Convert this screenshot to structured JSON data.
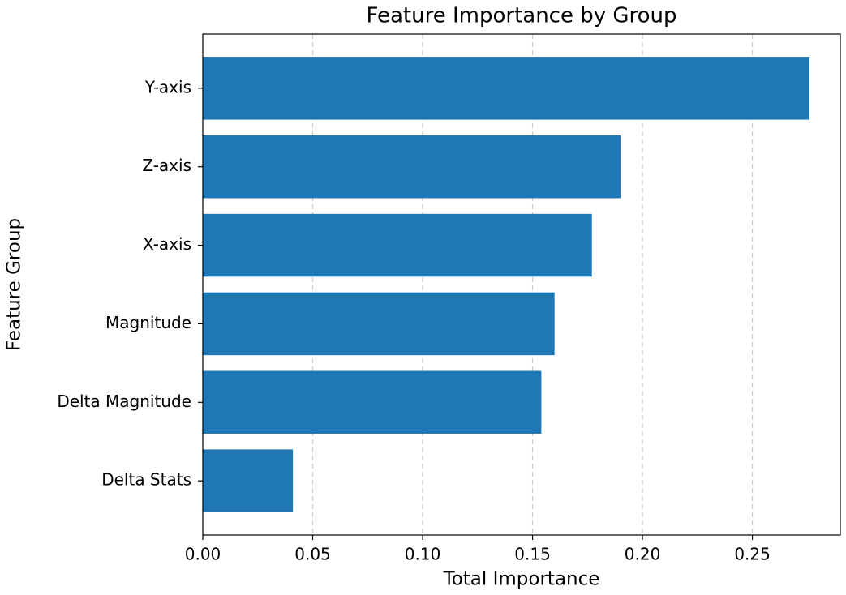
{
  "chart_data": {
    "type": "barh",
    "title": "Feature Importance by Group",
    "x_label": "Total Importance",
    "y_label": "Feature Group",
    "categories": [
      "Y-axis",
      "Z-axis",
      "X-axis",
      "Magnitude",
      "Delta Magnitude",
      "Delta Stats"
    ],
    "values": [
      0.276,
      0.19,
      0.177,
      0.16,
      0.154,
      0.041
    ],
    "color": "#1f77b4",
    "xlim": [
      0,
      0.29
    ],
    "xticks": [
      {
        "value": 0,
        "label": "0.00"
      },
      {
        "value": 0.05,
        "label": "0.05"
      },
      {
        "value": 0.1,
        "label": "0.10"
      },
      {
        "value": 0.15,
        "label": "0.15"
      },
      {
        "value": 0.2,
        "label": "0.20"
      },
      {
        "value": 0.25,
        "label": "0.25"
      }
    ],
    "grid": true
  }
}
